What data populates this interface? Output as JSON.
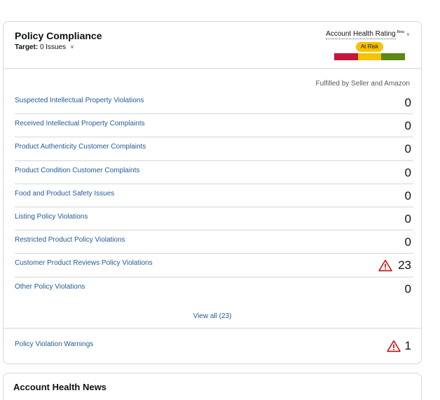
{
  "policy_compliance": {
    "title": "Policy Compliance",
    "target_label": "Target:",
    "target_value": "0 Issues",
    "account_health": {
      "label": "Account Health Rating",
      "badge": "Beta",
      "status": "At Risk",
      "colors": {
        "red": "#c7153e",
        "yellow": "#f8c200",
        "green": "#5a8a13"
      }
    },
    "column_header": "Fulfilled by Seller and Amazon",
    "rows": [
      {
        "label": "Suspected Intellectual Property Violations",
        "value": "0",
        "warning": false
      },
      {
        "label": "Received Intellectual Property Complaints",
        "value": "0",
        "warning": false
      },
      {
        "label": "Product Authenticity Customer Complaints",
        "value": "0",
        "warning": false
      },
      {
        "label": "Product Condition Customer Complaints",
        "value": "0",
        "warning": false
      },
      {
        "label": "Food and Product Safety Issues",
        "value": "0",
        "warning": false
      },
      {
        "label": "Listing Policy Violations",
        "value": "0",
        "warning": false
      },
      {
        "label": "Restricted Product Policy Violations",
        "value": "0",
        "warning": false
      },
      {
        "label": "Customer Product Reviews Policy Violations",
        "value": "23",
        "warning": true
      },
      {
        "label": "Other Policy Violations",
        "value": "0",
        "warning": false
      }
    ],
    "view_all": "View all (23)",
    "warnings_row": {
      "label": "Policy Violation Warnings",
      "value": "1",
      "warning": true
    },
    "icons": {
      "chevron": "chevron-down-icon",
      "warning": "warning-triangle-icon"
    }
  },
  "account_health_news": {
    "title": "Account Health News"
  }
}
